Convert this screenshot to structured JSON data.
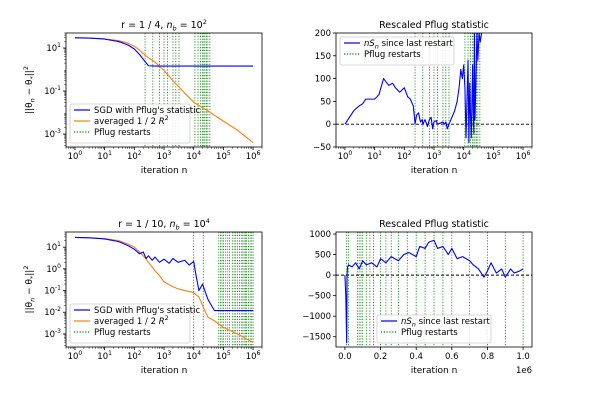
{
  "colors": {
    "blue": "#0000ff",
    "orange": "#ff7f0e",
    "green": "#008000",
    "black": "#000000"
  },
  "chart_data": [
    {
      "type": "line",
      "title": "r = 1 / 4, n_b = 10^2",
      "title_parts": {
        "pre": "r = 1 / 4, ",
        "n": "n",
        "n_sub": "b",
        "mid": " = 10",
        "sup": "2"
      },
      "xlabel": "iteration n",
      "ylabel": "||θ_n − θ_*||^2",
      "xscale": "log",
      "yscale": "log",
      "xlim": [
        0.5,
        2000000
      ],
      "ylim": [
        0.00025,
        50
      ],
      "xticks": [
        1,
        10,
        100,
        1000,
        10000,
        100000,
        1000000
      ],
      "xtick_labels": [
        {
          "b": "10",
          "e": "0"
        },
        {
          "b": "10",
          "e": "1"
        },
        {
          "b": "10",
          "e": "2"
        },
        {
          "b": "10",
          "e": "3"
        },
        {
          "b": "10",
          "e": "4"
        },
        {
          "b": "10",
          "e": "5"
        },
        {
          "b": "10",
          "e": "6"
        }
      ],
      "yticks": [
        0.001,
        0.1,
        10
      ],
      "ytick_labels": [
        {
          "b": "10",
          "e": "-3"
        },
        {
          "b": "10",
          "e": "-1"
        },
        {
          "b": "10",
          "e": "1"
        }
      ],
      "legend": {
        "position": "lower-left",
        "entries": [
          {
            "label": "SGD with Pflug's statistic",
            "style": "blue"
          },
          {
            "label": "averaged 1 / 2 R^2",
            "pre": "averaged 1 / 2 ",
            "sym": "R",
            "sup": "2",
            "style": "orange"
          },
          {
            "label": "Pflug restarts",
            "style": "green-dotted"
          }
        ]
      },
      "series": [
        {
          "name": "SGD with Pflug's statistic",
          "color": "blue",
          "x": [
            1,
            3,
            10,
            30,
            60,
            100,
            150,
            200,
            300,
            500,
            1000,
            2000,
            10000,
            100000,
            1000000
          ],
          "y": [
            30,
            29,
            26,
            20,
            14,
            9,
            5,
            3,
            1.5,
            1.45,
            1.45,
            1.45,
            1.45,
            1.45,
            1.45
          ]
        },
        {
          "name": "averaged 1 / 2 R^2",
          "color": "orange",
          "x": [
            1,
            3,
            10,
            30,
            60,
            100,
            150,
            200,
            300,
            500,
            1000,
            2000,
            5000,
            10000,
            30000,
            100000,
            300000,
            1000000
          ],
          "y": [
            30,
            29,
            27,
            22,
            17,
            12,
            8,
            5.5,
            3.5,
            2.2,
            0.9,
            0.3,
            0.08,
            0.03,
            0.012,
            0.004,
            0.0015,
            0.0004
          ]
        }
      ],
      "restarts": [
        230,
        420,
        700,
        1000,
        1300,
        2000,
        2500,
        3200,
        11000,
        14000,
        17000,
        20000,
        22000,
        24000,
        27000,
        30000,
        35000
      ]
    },
    {
      "type": "line",
      "title": "Rescaled Pflug statistic",
      "xlabel": "iteration n",
      "ylabel": "",
      "xscale": "log",
      "yscale": "linear",
      "xlim": [
        0.5,
        2000000
      ],
      "ylim": [
        -50,
        200
      ],
      "xticks": [
        1,
        10,
        100,
        1000,
        10000,
        100000,
        1000000
      ],
      "xtick_labels": [
        {
          "b": "10",
          "e": "0"
        },
        {
          "b": "10",
          "e": "1"
        },
        {
          "b": "10",
          "e": "2"
        },
        {
          "b": "10",
          "e": "3"
        },
        {
          "b": "10",
          "e": "4"
        },
        {
          "b": "10",
          "e": "5"
        },
        {
          "b": "10",
          "e": "6"
        }
      ],
      "yticks": [
        -50,
        0,
        50,
        100,
        150,
        200
      ],
      "ytick_labels": [
        "−50",
        "0",
        "50",
        "100",
        "150",
        "200"
      ],
      "legend": {
        "position": "top-left",
        "entries": [
          {
            "label": "nS_n since last restart",
            "pre": "",
            "sym": "nS",
            "sub": "n",
            "post": " since last restart",
            "style": "blue"
          },
          {
            "label": "Pflug restarts",
            "style": "green-dotted"
          }
        ]
      },
      "hline": 0,
      "series": [
        {
          "name": "nS_n since last restart",
          "color": "blue",
          "x": [
            1,
            2,
            3,
            4,
            5,
            10,
            12,
            14,
            20,
            30,
            40,
            50,
            70,
            100,
            130,
            160,
            200,
            220,
            230,
            260,
            300,
            350,
            400,
            420,
            500,
            600,
            700,
            800,
            900,
            1000,
            1200,
            1300,
            1600,
            2000,
            2300,
            2500,
            2800,
            3200,
            4000,
            5000,
            6000,
            7000,
            8000,
            9000,
            10000,
            11000,
            12000,
            13000,
            14000,
            15000,
            16000,
            17000,
            18000,
            19000,
            20000,
            21000,
            22000,
            23000,
            24000,
            26000,
            28000,
            30000,
            33000,
            36000,
            40000
          ],
          "y": [
            0,
            30,
            40,
            45,
            55,
            55,
            60,
            65,
            100,
            85,
            90,
            80,
            70,
            80,
            60,
            55,
            40,
            15,
            0,
            20,
            25,
            5,
            10,
            0,
            10,
            -5,
            10,
            15,
            -10,
            5,
            8,
            0,
            2,
            5,
            0,
            5,
            -10,
            0,
            15,
            30,
            50,
            80,
            120,
            100,
            130,
            80,
            -30,
            60,
            140,
            -40,
            90,
            20,
            -30,
            50,
            130,
            30,
            -20,
            200,
            10,
            100,
            200,
            140,
            200,
            180,
            200
          ]
        }
      ],
      "restarts": [
        230,
        420,
        700,
        1000,
        1300,
        2000,
        2500,
        3200,
        11000,
        14000,
        17000,
        20000,
        22000,
        24000,
        27000,
        30000,
        35000
      ]
    },
    {
      "type": "line",
      "title": "r = 1 / 10, n_b = 10^4",
      "title_parts": {
        "pre": "r = 1 / 10, ",
        "n": "n",
        "n_sub": "b",
        "mid": " = 10",
        "sup": "4"
      },
      "xlabel": "iteration n",
      "ylabel": "||θ_n − θ_*||^2",
      "xscale": "log",
      "yscale": "log",
      "xlim": [
        0.5,
        2000000
      ],
      "ylim": [
        0.00025,
        50
      ],
      "xticks": [
        1,
        10,
        100,
        1000,
        10000,
        100000,
        1000000
      ],
      "xtick_labels": [
        {
          "b": "10",
          "e": "0"
        },
        {
          "b": "10",
          "e": "1"
        },
        {
          "b": "10",
          "e": "2"
        },
        {
          "b": "10",
          "e": "3"
        },
        {
          "b": "10",
          "e": "4"
        },
        {
          "b": "10",
          "e": "5"
        },
        {
          "b": "10",
          "e": "6"
        }
      ],
      "yticks": [
        0.001,
        0.01,
        0.1,
        1,
        10
      ],
      "ytick_labels": [
        {
          "b": "10",
          "e": "-3"
        },
        {
          "b": "10",
          "e": "-2"
        },
        {
          "b": "10",
          "e": "-1"
        },
        {
          "b": "10",
          "e": "0"
        },
        {
          "b": "10",
          "e": "1"
        }
      ],
      "legend": {
        "position": "lower-left",
        "entries": [
          {
            "label": "SGD with Pflug's statistic",
            "style": "blue"
          },
          {
            "label": "averaged 1 / 2 R^2",
            "pre": "averaged 1 / 2 ",
            "sym": "R",
            "sup": "2",
            "style": "orange"
          },
          {
            "label": "Pflug restarts",
            "style": "green-dotted"
          }
        ]
      },
      "series": [
        {
          "name": "SGD with Pflug's statistic",
          "color": "blue",
          "x": [
            1,
            3,
            10,
            30,
            60,
            100,
            150,
            200,
            250,
            300,
            400,
            500,
            700,
            1000,
            1500,
            2000,
            3000,
            5000,
            7000,
            10000,
            12000,
            15000,
            20000,
            25000,
            30000,
            40000,
            50000,
            60000,
            70000,
            100000,
            1000000
          ],
          "y": [
            28,
            27,
            24,
            18,
            12,
            8,
            5,
            6,
            3,
            4,
            2.5,
            3.5,
            2,
            2.8,
            1.8,
            3,
            2,
            2.5,
            1.5,
            2.2,
            0.5,
            0.1,
            0.2,
            0.08,
            0.04,
            0.02,
            0.012,
            0.012,
            0.012,
            0.012,
            0.012
          ]
        },
        {
          "name": "averaged 1 / 2 R^2",
          "color": "orange",
          "x": [
            1,
            3,
            10,
            30,
            60,
            100,
            200,
            300,
            500,
            700,
            1000,
            2000,
            3000,
            5000,
            7000,
            10000,
            15000,
            20000,
            25000,
            30000,
            50000,
            100000,
            300000,
            1000000
          ],
          "y": [
            28,
            27,
            25,
            20,
            14,
            10,
            4,
            2,
            0.8,
            0.5,
            0.25,
            0.15,
            0.12,
            0.1,
            0.09,
            0.08,
            0.05,
            0.02,
            0.01,
            0.006,
            0.004,
            0.002,
            0.001,
            0.0004
          ]
        }
      ],
      "restarts": [
        10000,
        21000,
        70000,
        80000,
        90000,
        100000,
        120000,
        140000,
        160000,
        200000,
        230000,
        260000,
        300000,
        350000,
        400000,
        450000,
        500000,
        550000,
        600000,
        700000,
        800000,
        900000,
        1000000
      ]
    },
    {
      "type": "line",
      "title": "Rescaled Pflug statistic",
      "xlabel": "iteration n",
      "ylabel": "",
      "xscale": "linear",
      "yscale": "linear",
      "xlim": [
        -50000,
        1050000
      ],
      "ylim": [
        -1750,
        1050
      ],
      "xticks": [
        0,
        200000,
        400000,
        600000,
        800000,
        1000000
      ],
      "xtick_labels": [
        "0.0",
        "0.2",
        "0.4",
        "0.6",
        "0.8",
        "1.0"
      ],
      "x_offset_label": "1e6",
      "yticks": [
        -1500,
        -1000,
        -500,
        0,
        500,
        1000
      ],
      "ytick_labels": [
        "−1500",
        "−1000",
        "−500",
        "0",
        "500",
        "1000"
      ],
      "legend": {
        "position": "lower-center",
        "entries": [
          {
            "label": "nS_n since last restart",
            "pre": "",
            "sym": "nS",
            "sub": "n",
            "post": " since last restart",
            "style": "blue"
          },
          {
            "label": "Pflug restarts",
            "style": "green-dotted"
          }
        ]
      },
      "hline": 0,
      "series": [
        {
          "name": "nS_n since last restart",
          "color": "blue",
          "x": [
            0,
            5000,
            10000,
            12000,
            15000,
            20000,
            40000,
            60000,
            80000,
            100000,
            120000,
            150000,
            180000,
            200000,
            230000,
            260000,
            300000,
            330000,
            360000,
            400000,
            420000,
            450000,
            470000,
            500000,
            520000,
            550000,
            580000,
            600000,
            630000,
            660000,
            700000,
            720000,
            750000,
            780000,
            800000,
            820000,
            850000,
            880000,
            900000,
            930000,
            950000,
            980000,
            1000000
          ],
          "y": [
            0,
            -500,
            -1650,
            0,
            200,
            250,
            200,
            300,
            150,
            350,
            250,
            300,
            200,
            400,
            300,
            450,
            350,
            500,
            550,
            450,
            700,
            650,
            800,
            850,
            650,
            700,
            500,
            650,
            400,
            450,
            350,
            250,
            150,
            -50,
            100,
            300,
            50,
            150,
            -50,
            150,
            50,
            100,
            150
          ]
        }
      ],
      "restarts": [
        10000,
        21000,
        70000,
        80000,
        90000,
        100000,
        120000,
        140000,
        160000,
        200000,
        230000,
        260000,
        300000,
        350000,
        400000,
        450000,
        500000,
        550000,
        600000,
        700000,
        800000,
        900000,
        1000000
      ]
    }
  ]
}
